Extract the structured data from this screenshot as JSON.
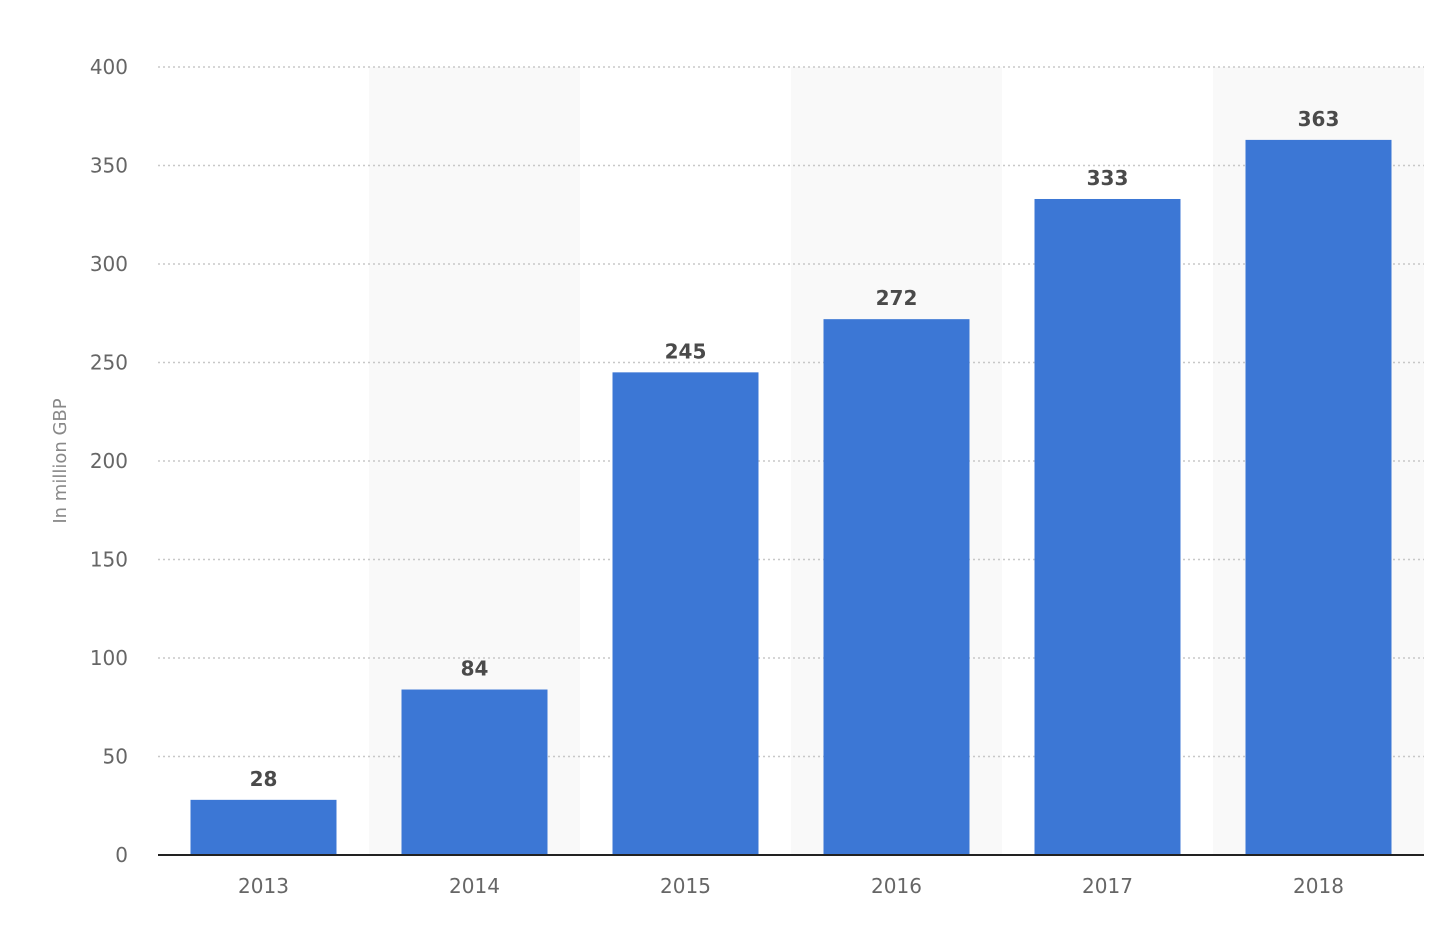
{
  "chart_data": {
    "type": "bar",
    "categories": [
      "2013",
      "2014",
      "2015",
      "2016",
      "2017",
      "2018"
    ],
    "values": [
      28,
      84,
      245,
      272,
      333,
      363
    ],
    "data_labels": [
      "28",
      "84",
      "245",
      "272",
      "333",
      "363"
    ],
    "title": "",
    "xlabel": "",
    "ylabel": "In million GBP",
    "ylim": [
      0,
      400
    ],
    "yticks": [
      0,
      50,
      100,
      150,
      200,
      250,
      300,
      350,
      400
    ],
    "ytick_labels": [
      "0",
      "50",
      "100",
      "150",
      "200",
      "250",
      "300",
      "350",
      "400"
    ],
    "grid": true,
    "legend": "none",
    "colors": {
      "bar": "#3c77d5",
      "band": "#f9f9f9",
      "gridline": "#c8c8c8",
      "axis": "#222222"
    }
  }
}
